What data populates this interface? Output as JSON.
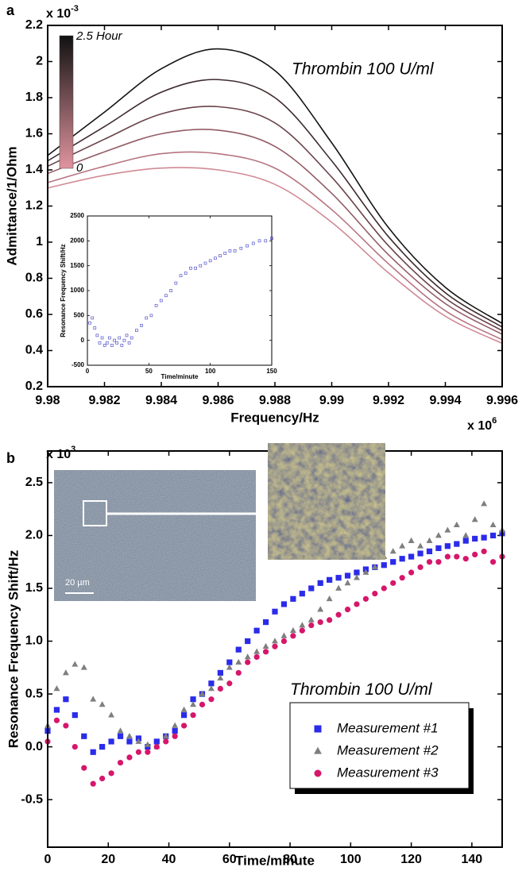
{
  "chart_data": [
    {
      "type": "line",
      "panel_label": "a",
      "annotation": "Thrombin 100 U/ml",
      "xlabel": "Frequency/Hz",
      "ylabel": "Admittance/1/Ohm",
      "x_multiplier": "x 10",
      "x_multiplier_exp": "6",
      "y_multiplier": "x 10",
      "y_multiplier_exp": "-3",
      "colorbar_labels": [
        "2.5 Hour",
        "0"
      ],
      "x": [
        9.98,
        9.982,
        9.984,
        9.986,
        9.988,
        9.99,
        9.992,
        9.994,
        9.996
      ],
      "series": [
        {
          "color": "#141414",
          "values": [
            1.48,
            1.72,
            1.96,
            2.07,
            1.95,
            1.55,
            1.08,
            0.75,
            0.55
          ]
        },
        {
          "color": "#3e2a2d",
          "values": [
            1.45,
            1.64,
            1.83,
            1.9,
            1.8,
            1.45,
            1.03,
            0.72,
            0.53
          ]
        },
        {
          "color": "#69434a",
          "values": [
            1.42,
            1.57,
            1.71,
            1.75,
            1.66,
            1.36,
            0.98,
            0.69,
            0.51
          ]
        },
        {
          "color": "#935c66",
          "values": [
            1.38,
            1.5,
            1.6,
            1.62,
            1.53,
            1.27,
            0.93,
            0.66,
            0.49
          ]
        },
        {
          "color": "#b67480",
          "values": [
            1.33,
            1.42,
            1.49,
            1.49,
            1.41,
            1.18,
            0.88,
            0.62,
            0.46
          ]
        },
        {
          "color": "#d08a94",
          "values": [
            1.3,
            1.37,
            1.41,
            1.4,
            1.32,
            1.11,
            0.83,
            0.59,
            0.44
          ]
        }
      ],
      "xlim": [
        9.98,
        9.996
      ],
      "xticks": [
        9.98,
        9.982,
        9.984,
        9.986,
        9.988,
        9.99,
        9.992,
        9.994,
        9.996
      ],
      "ylim": [
        0.2,
        2.2
      ],
      "yticks": [
        0.2,
        0.4,
        0.6,
        0.8,
        1,
        1.2,
        1.4,
        1.6,
        1.8,
        2,
        2.2
      ]
    },
    {
      "type": "scatter",
      "xlabel": "Time/minute",
      "ylabel": "Resonance Frequency Shift/Hz",
      "color": "#5555cc",
      "x": [
        2,
        4,
        6,
        8,
        10,
        12,
        14,
        16,
        18,
        20,
        22,
        24,
        26,
        28,
        30,
        32,
        34,
        36,
        40,
        44,
        48,
        52,
        56,
        60,
        64,
        68,
        72,
        76,
        80,
        84,
        88,
        92,
        96,
        100,
        104,
        108,
        112,
        116,
        120,
        125,
        130,
        135,
        140,
        145,
        150
      ],
      "values": [
        350,
        450,
        250,
        100,
        -50,
        50,
        -100,
        -50,
        50,
        -100,
        0,
        -50,
        50,
        -100,
        0,
        100,
        -50,
        50,
        200,
        300,
        450,
        500,
        700,
        800,
        900,
        1000,
        1150,
        1300,
        1350,
        1450,
        1450,
        1500,
        1550,
        1600,
        1650,
        1700,
        1750,
        1800,
        1800,
        1850,
        1900,
        1950,
        2000,
        2000,
        2050
      ],
      "xlim": [
        0,
        150
      ],
      "xticks": [
        0,
        50,
        100,
        150
      ],
      "ylim": [
        -500,
        2500
      ],
      "yticks": [
        -500,
        0,
        500,
        1000,
        1500,
        2000,
        2500
      ]
    },
    {
      "type": "scatter",
      "panel_label": "b",
      "annotation": "Thrombin 100 U/ml",
      "xlabel": "Time/minute",
      "ylabel": "Resonance Frequency Shift/Hz",
      "y_multiplier": "x 10",
      "y_multiplier_exp": "3",
      "scale_bar_label": "20 µm",
      "x": [
        0,
        3,
        6,
        9,
        12,
        15,
        18,
        21,
        24,
        27,
        30,
        33,
        36,
        39,
        42,
        45,
        48,
        51,
        54,
        57,
        60,
        63,
        66,
        69,
        72,
        75,
        78,
        81,
        84,
        87,
        90,
        93,
        96,
        99,
        102,
        105,
        108,
        111,
        114,
        117,
        120,
        123,
        126,
        129,
        132,
        135,
        138,
        141,
        144,
        147,
        150
      ],
      "series": [
        {
          "name": "Measurement #1",
          "color": "#2b2bea",
          "marker": "square",
          "values": [
            0.15,
            0.35,
            0.45,
            0.3,
            0.1,
            -0.05,
            0,
            0.05,
            0.1,
            0.05,
            0.08,
            0,
            0.05,
            0.1,
            0.15,
            0.3,
            0.45,
            0.5,
            0.6,
            0.7,
            0.8,
            0.92,
            1,
            1.1,
            1.18,
            1.28,
            1.35,
            1.4,
            1.45,
            1.5,
            1.55,
            1.58,
            1.6,
            1.62,
            1.65,
            1.68,
            1.7,
            1.72,
            1.75,
            1.78,
            1.8,
            1.83,
            1.85,
            1.88,
            1.9,
            1.92,
            1.95,
            1.97,
            1.98,
            2,
            2.02
          ]
        },
        {
          "name": "Measurement #2",
          "color": "#7f7f7f",
          "marker": "triangle",
          "values": [
            0.2,
            0.55,
            0.7,
            0.78,
            0.75,
            0.45,
            0.4,
            0.3,
            0.15,
            0.1,
            0.05,
            0.02,
            0,
            0.1,
            0.2,
            0.35,
            0.4,
            0.5,
            0.55,
            0.65,
            0.75,
            0.8,
            0.85,
            0.9,
            0.95,
            1,
            1.05,
            1.1,
            1.15,
            1.2,
            1.3,
            1.4,
            1.5,
            1.55,
            1.6,
            1.65,
            1.7,
            1.8,
            1.85,
            1.9,
            1.95,
            1.9,
            1.95,
            2,
            2.05,
            2.1,
            2,
            2.15,
            2.3,
            2.1,
            2.05
          ]
        },
        {
          "name": "Measurement #3",
          "color": "#d6166b",
          "marker": "circle",
          "values": [
            0.05,
            0.25,
            0.2,
            0,
            -0.2,
            -0.35,
            -0.3,
            -0.25,
            -0.15,
            -0.1,
            -0.05,
            -0.05,
            0,
            0.05,
            0.1,
            0.2,
            0.3,
            0.4,
            0.45,
            0.55,
            0.6,
            0.7,
            0.8,
            0.85,
            0.9,
            0.95,
            1,
            1.05,
            1.1,
            1.15,
            1.18,
            1.2,
            1.25,
            1.3,
            1.35,
            1.4,
            1.45,
            1.5,
            1.55,
            1.6,
            1.65,
            1.7,
            1.75,
            1.75,
            1.8,
            1.8,
            1.78,
            1.82,
            1.85,
            1.75,
            1.8
          ]
        }
      ],
      "xlim": [
        0,
        150
      ],
      "xticks": [
        0,
        20,
        40,
        60,
        80,
        100,
        120,
        140
      ],
      "ylim": [
        -0.95,
        2.8
      ],
      "yticks": [
        -0.5,
        {
          "value": 0,
          "label": "0.0"
        },
        0.5,
        {
          "value": 1,
          "label": "1.0"
        },
        1.5,
        {
          "value": 2,
          "label": "2.0"
        },
        2.5
      ]
    }
  ]
}
